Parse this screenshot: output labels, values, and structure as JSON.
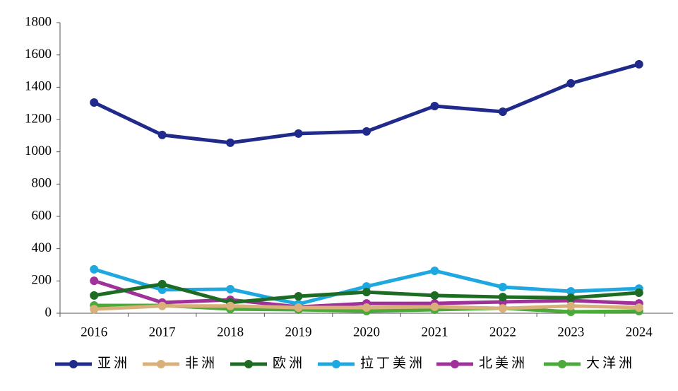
{
  "chart_data": {
    "type": "line",
    "categories": [
      "2016",
      "2017",
      "2018",
      "2019",
      "2020",
      "2021",
      "2022",
      "2023",
      "2024"
    ],
    "series": [
      {
        "name": "亚洲",
        "color": "#1f2a8a",
        "values": [
          1305,
          1104,
          1056,
          1113,
          1126,
          1283,
          1248,
          1424,
          1542
        ]
      },
      {
        "name": "非洲",
        "color": "#d9b07a",
        "values": [
          25,
          45,
          45,
          35,
          35,
          40,
          30,
          45,
          35
        ]
      },
      {
        "name": "欧洲",
        "color": "#1e6b24",
        "values": [
          110,
          180,
          66,
          105,
          131,
          110,
          100,
          96,
          127
        ]
      },
      {
        "name": "拉丁美洲",
        "color": "#1fa8e0",
        "values": [
          272,
          145,
          149,
          57,
          166,
          263,
          162,
          136,
          153
        ]
      },
      {
        "name": "北美洲",
        "color": "#a0309a",
        "values": [
          201,
          66,
          83,
          39,
          61,
          61,
          70,
          79,
          61
        ]
      },
      {
        "name": "大洋洲",
        "color": "#4aaa3a",
        "values": [
          48,
          48,
          26,
          22,
          13,
          22,
          31,
          9,
          13
        ]
      }
    ],
    "ylim": [
      0,
      1800
    ],
    "yticks": [
      0,
      200,
      400,
      600,
      800,
      1000,
      1200,
      1400,
      1600,
      1800
    ],
    "legend": "bottom"
  }
}
